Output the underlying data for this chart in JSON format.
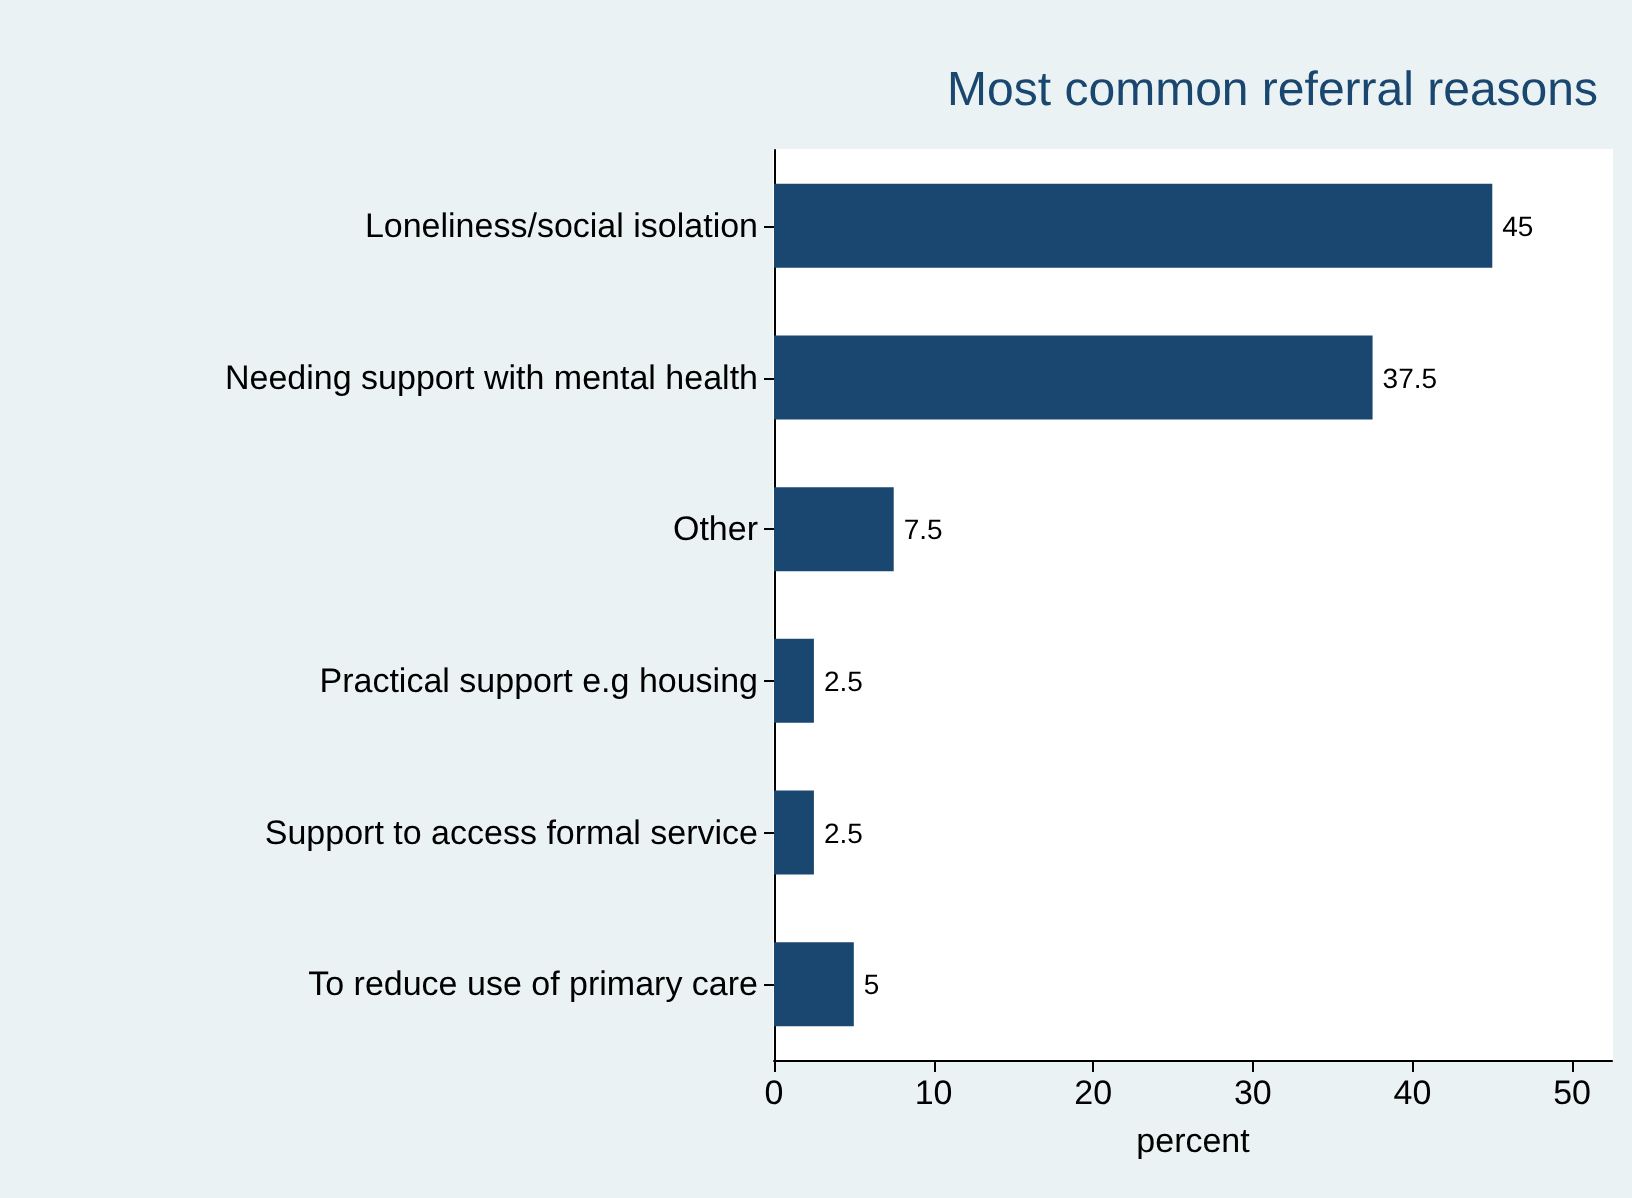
{
  "chart_data": {
    "type": "bar",
    "orientation": "horizontal",
    "title": "Most common referral reasons",
    "xlabel": "percent",
    "categories": [
      "Loneliness/social isolation",
      "Needing support with mental health",
      "Other",
      "Practical support e.g housing",
      "Support to access formal service",
      "To reduce use of primary care"
    ],
    "values": [
      45,
      37.5,
      7.5,
      2.5,
      2.5,
      5
    ],
    "color": "#1a476f",
    "xlim": [
      0,
      52.5
    ],
    "xticks": [
      0,
      10,
      20,
      30,
      40,
      50
    ],
    "grid": false,
    "data_labels": true
  }
}
